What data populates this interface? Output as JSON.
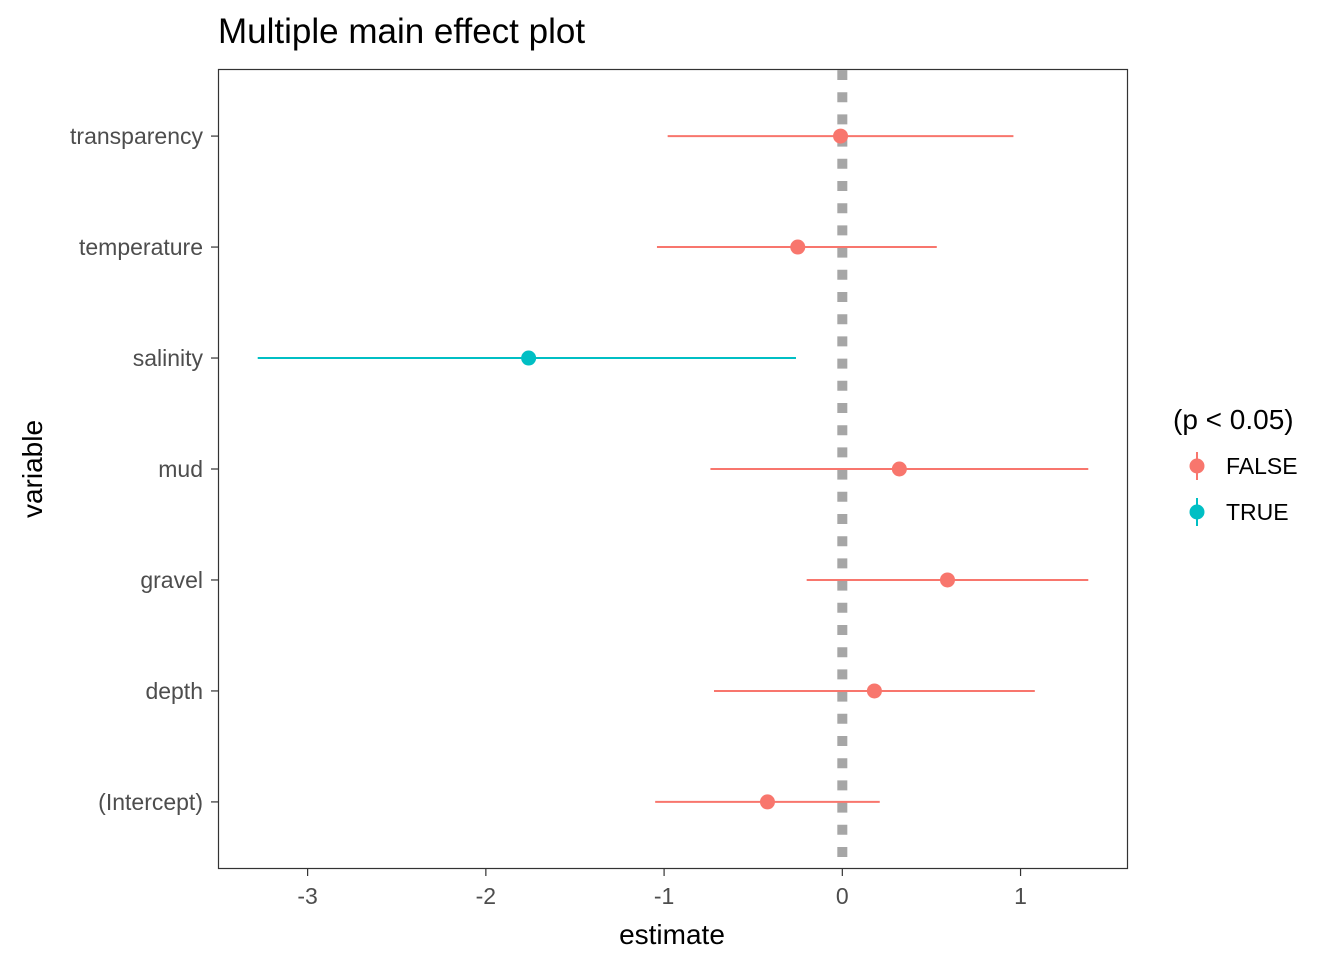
{
  "chart_data": {
    "type": "scatter",
    "title": "Multiple main effect plot",
    "xlabel": "estimate",
    "ylabel": "variable",
    "xlim": [
      -3.5,
      1.6
    ],
    "x_ticks": [
      -3,
      -2,
      -1,
      0,
      1
    ],
    "x_tick_labels": [
      "-3",
      "-2",
      "-1",
      "0",
      "1"
    ],
    "categories": [
      "(Intercept)",
      "depth",
      "gravel",
      "mud",
      "salinity",
      "temperature",
      "transparency"
    ],
    "reference_line": {
      "x": 0,
      "style": "dotted",
      "color": "#a6a6a6"
    },
    "grid": false,
    "legend": {
      "title": "(p < 0.05)",
      "position": "right",
      "entries": [
        {
          "label": "FALSE",
          "color": "#F8766D"
        },
        {
          "label": "TRUE",
          "color": "#00BFC4"
        }
      ]
    },
    "points": [
      {
        "variable": "(Intercept)",
        "estimate": -0.42,
        "low": -1.05,
        "high": 0.21,
        "significant": "FALSE"
      },
      {
        "variable": "depth",
        "estimate": 0.18,
        "low": -0.72,
        "high": 1.08,
        "significant": "FALSE"
      },
      {
        "variable": "gravel",
        "estimate": 0.59,
        "low": -0.2,
        "high": 1.38,
        "significant": "FALSE"
      },
      {
        "variable": "mud",
        "estimate": 0.32,
        "low": -0.74,
        "high": 1.38,
        "significant": "FALSE"
      },
      {
        "variable": "salinity",
        "estimate": -1.76,
        "low": -3.28,
        "high": -0.26,
        "significant": "TRUE"
      },
      {
        "variable": "temperature",
        "estimate": -0.25,
        "low": -1.04,
        "high": 0.53,
        "significant": "FALSE"
      },
      {
        "variable": "transparency",
        "estimate": -0.01,
        "low": -0.98,
        "high": 0.96,
        "significant": "FALSE"
      }
    ]
  }
}
